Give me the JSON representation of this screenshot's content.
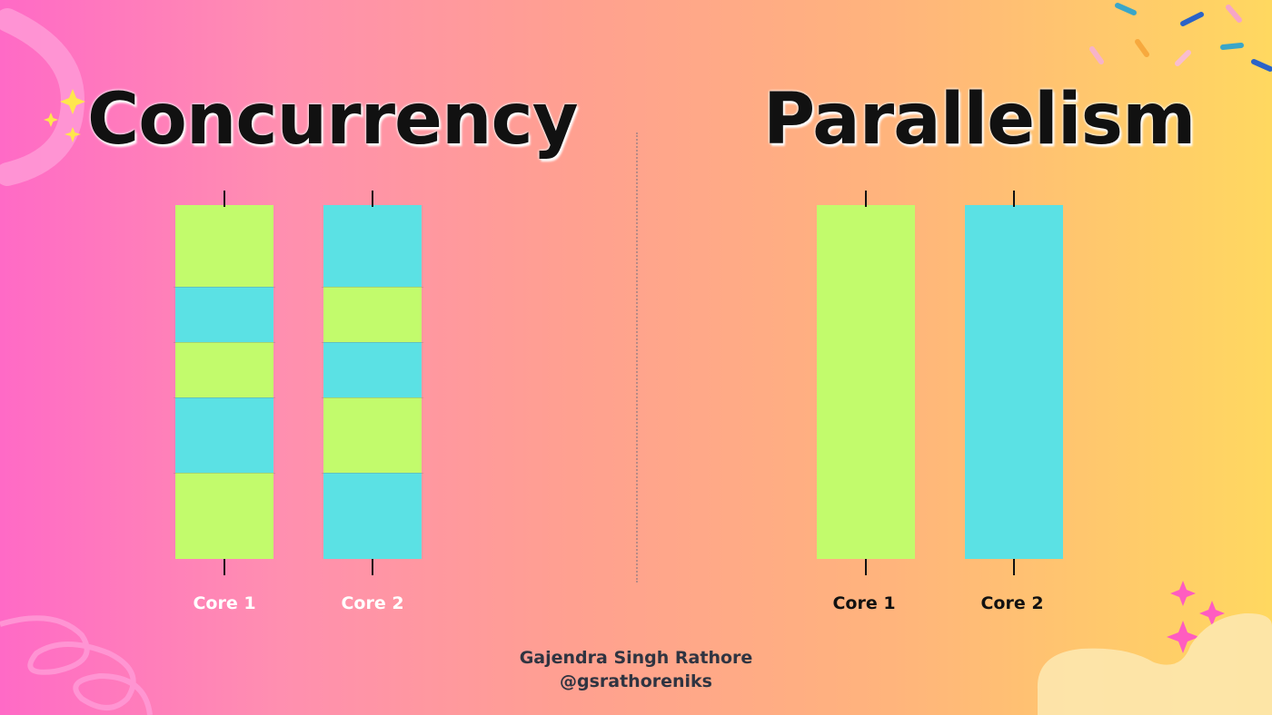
{
  "left_panel": {
    "title": "Concurrency",
    "cores": [
      {
        "label": "Core 1",
        "segments": [
          {
            "color": "green",
            "share": 0.23
          },
          {
            "color": "cyan",
            "share": 0.157
          },
          {
            "color": "green",
            "share": 0.157
          },
          {
            "color": "cyan",
            "share": 0.213
          },
          {
            "color": "green",
            "share": 0.243
          }
        ]
      },
      {
        "label": "Core 2",
        "segments": [
          {
            "color": "cyan",
            "share": 0.23
          },
          {
            "color": "green",
            "share": 0.157
          },
          {
            "color": "cyan",
            "share": 0.157
          },
          {
            "color": "green",
            "share": 0.213
          },
          {
            "color": "cyan",
            "share": 0.243
          }
        ]
      }
    ]
  },
  "right_panel": {
    "title": "Parallelism",
    "cores": [
      {
        "label": "Core 1",
        "segments": [
          {
            "color": "green",
            "share": 1.0
          }
        ]
      },
      {
        "label": "Core 2",
        "segments": [
          {
            "color": "cyan",
            "share": 1.0
          }
        ]
      }
    ]
  },
  "colors": {
    "green": "#c2fb6c",
    "cyan": "#5be1e4"
  },
  "footer": {
    "author": "Gajendra Singh Rathore",
    "handle": "@gsrathoreniks"
  }
}
